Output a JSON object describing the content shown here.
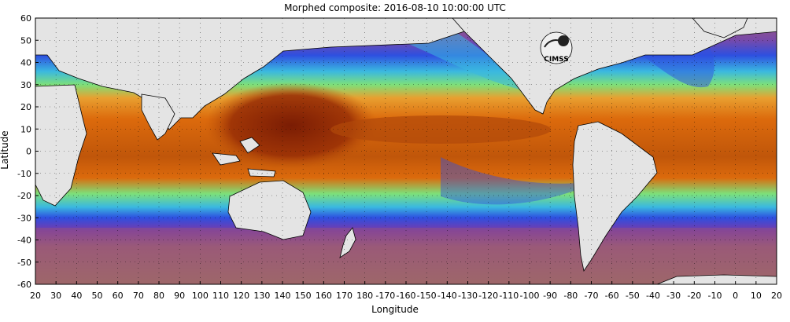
{
  "title": "Morphed composite: 2016-08-10 10:00:00 UTC",
  "xlabel": "Longitude",
  "ylabel": "Latitude",
  "axes": {
    "x_ticks": [
      "20",
      "30",
      "40",
      "50",
      "60",
      "70",
      "80",
      "90",
      "100",
      "110",
      "120",
      "130",
      "140",
      "150",
      "160",
      "170",
      "180",
      "-170",
      "-160",
      "-150",
      "-140",
      "-130",
      "-120",
      "-110",
      "-100",
      "-90",
      "-80",
      "-70",
      "-60",
      "-50",
      "-40",
      "-30",
      "-20",
      "-10",
      "0",
      "10",
      "20"
    ],
    "y_ticks": [
      "60",
      "50",
      "40",
      "30",
      "20",
      "10",
      "0",
      "-10",
      "-20",
      "-30",
      "-40",
      "-50",
      "-60"
    ],
    "lon_range": [
      20,
      380
    ],
    "lat_range": [
      -60,
      60
    ]
  },
  "logo": {
    "text": "CIMSS"
  },
  "colors": {
    "land": "#e4e4e4",
    "very_moist": "#8a2a08",
    "moist": "#dc6a0c",
    "moderate": "#7de07a",
    "dry": "#2e4fe0",
    "very_dry": "#9a5a78"
  }
}
